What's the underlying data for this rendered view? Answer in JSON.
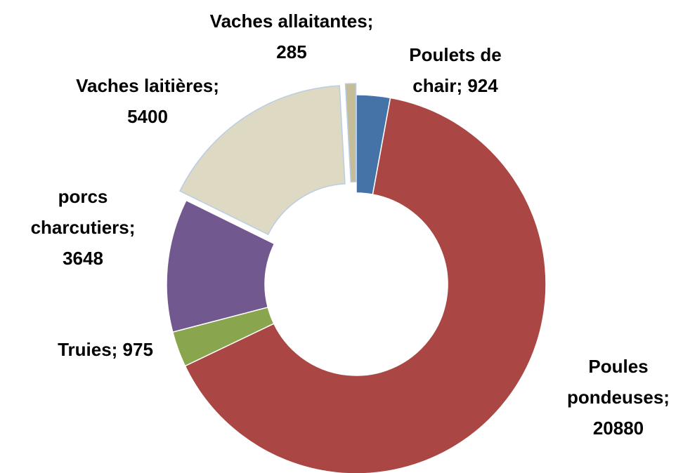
{
  "chart_data": {
    "type": "donut",
    "labels": [
      "Poulets de chair; 924",
      "Poules pondeuses; 20880",
      "Truies; 975",
      "porcs charcutiers; 3648",
      "Vaches laitières; 5400",
      "Vaches allaitantes; 285"
    ],
    "values": [
      924,
      20880,
      975,
      3648,
      5400,
      285
    ],
    "colors": [
      "#4572a7",
      "#aa4643",
      "#89a54e",
      "#71588f",
      "#ddd9c3",
      "#c4bd97"
    ],
    "exploded": [
      false,
      false,
      false,
      false,
      true,
      true
    ]
  }
}
